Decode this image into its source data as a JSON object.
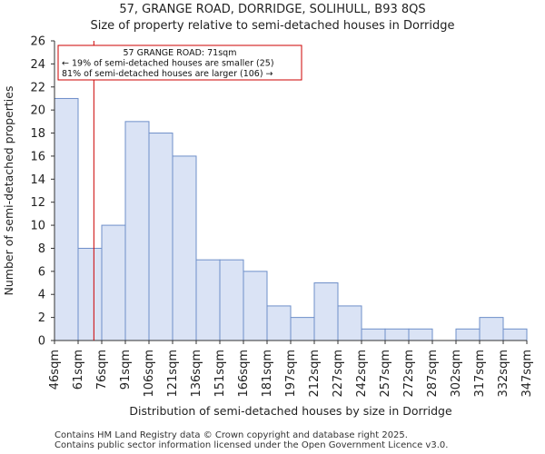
{
  "chart_data": {
    "type": "bar",
    "title": "57, GRANGE ROAD, DORRIDGE, SOLIHULL, B93 8QS",
    "subtitle": "Size of property relative to semi-detached houses in Dorridge",
    "xlabel": "Distribution of semi-detached houses by size in Dorridge",
    "ylabel": "Number of semi-detached properties",
    "bin_edges": [
      46,
      61,
      76,
      91,
      106,
      121,
      136,
      151,
      166,
      181,
      197,
      212,
      227,
      242,
      257,
      272,
      287,
      302,
      317,
      332,
      347
    ],
    "tick_labels": [
      "46sqm",
      "61sqm",
      "76sqm",
      "91sqm",
      "106sqm",
      "121sqm",
      "136sqm",
      "151sqm",
      "166sqm",
      "181sqm",
      "197sqm",
      "212sqm",
      "227sqm",
      "242sqm",
      "257sqm",
      "272sqm",
      "287sqm",
      "302sqm",
      "317sqm",
      "332sqm",
      "347sqm"
    ],
    "values": [
      21,
      8,
      10,
      19,
      18,
      16,
      7,
      7,
      6,
      3,
      2,
      5,
      3,
      1,
      1,
      1,
      0,
      1,
      2,
      1
    ],
    "ylim": [
      0,
      26
    ],
    "yticks": [
      0,
      2,
      4,
      6,
      8,
      10,
      12,
      14,
      16,
      18,
      20,
      22,
      24,
      26
    ],
    "marker": {
      "value": 71,
      "color": "#cc0000"
    },
    "annotation": {
      "line1": "57 GRANGE ROAD: 71sqm",
      "line2": "← 19% of semi-detached houses are smaller (25)",
      "line3": "81% of semi-detached houses are larger (106) →"
    },
    "bar_color": "#dae3f5",
    "bar_edge_color": "#6e8fc9"
  },
  "footer": {
    "line1": "Contains HM Land Registry data © Crown copyright and database right 2025.",
    "line2": "Contains public sector information licensed under the Open Government Licence v3.0."
  }
}
